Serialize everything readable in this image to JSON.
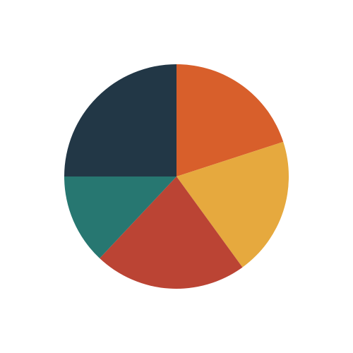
{
  "chart_data": {
    "type": "pie",
    "categories": [
      "",
      "",
      "",
      "",
      ""
    ],
    "values": [
      20,
      20,
      22,
      13,
      25
    ],
    "colors": [
      "#D85F2B",
      "#E6A93E",
      "#BB4434",
      "#277771",
      "#223746"
    ],
    "title": "",
    "legend": "none",
    "start_angle_deg": 0,
    "direction": "clockwise"
  }
}
